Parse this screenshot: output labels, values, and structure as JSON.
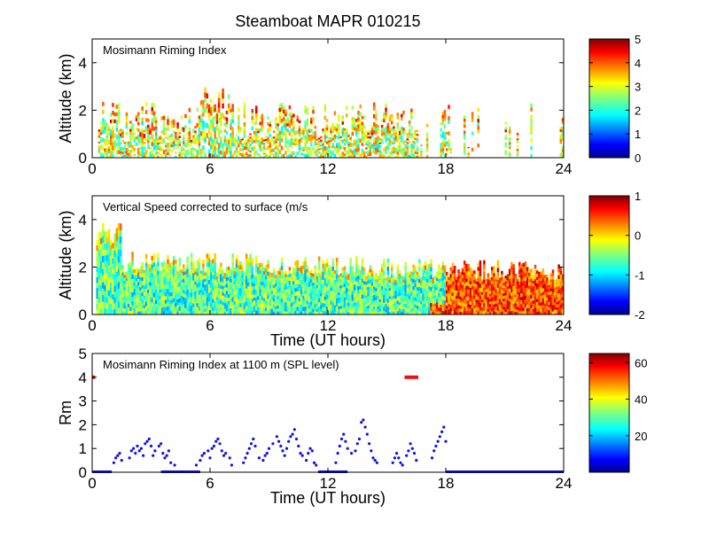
{
  "title": "Steamboat MAPR 010215",
  "colors": {
    "frame": "#000000",
    "points": "#1010ee",
    "baseline": "#1a1acc",
    "marker": "#ee1111",
    "background": "#ffffff"
  },
  "chart_data": [
    {
      "type": "heatmap",
      "panel_label": "Mosimann Riming Index",
      "ylabel": "Altitude (km)",
      "xlabel": "",
      "xlim": [
        0,
        24
      ],
      "ylim": [
        0,
        5
      ],
      "x_ticks": [
        "0",
        "6",
        "12",
        "18",
        "24"
      ],
      "y_ticks": [
        "0",
        "2",
        "4"
      ],
      "colorbar": {
        "min": 0,
        "max": 5,
        "ticks": [
          "0",
          "1",
          "2",
          "3",
          "4",
          "5"
        ]
      },
      "data_extent": {
        "x": [
          0.3,
          24
        ],
        "y": [
          0,
          3.5
        ],
        "dominant_range": [
          0.5,
          2.5
        ]
      }
    },
    {
      "type": "heatmap",
      "panel_label": "Vertical Speed corrected to surface (m/s",
      "ylabel": "Altitude (km)",
      "xlabel": "Time (UT hours)",
      "xlim": [
        0,
        24
      ],
      "ylim": [
        0,
        5
      ],
      "x_ticks": [
        "0",
        "6",
        "12",
        "18",
        "24"
      ],
      "y_ticks": [
        "0",
        "2",
        "4"
      ],
      "colorbar": {
        "min": -2,
        "max": 1,
        "ticks": [
          "-2",
          "-1",
          "0",
          "1"
        ]
      },
      "data_extent": {
        "x": [
          0.2,
          24
        ],
        "y": [
          0,
          3.6
        ],
        "dominant_range": [
          -1.0,
          0.0
        ]
      }
    },
    {
      "type": "scatter",
      "panel_label": "Mosimann Riming Index at 1100 m (SPL level)",
      "ylabel": "Rm",
      "xlabel": "Time (UT hours)",
      "xlim": [
        0,
        24
      ],
      "ylim": [
        0,
        5
      ],
      "x_ticks": [
        "0",
        "6",
        "12",
        "18",
        "24"
      ],
      "y_ticks": [
        "0",
        "1",
        "2",
        "3",
        "4",
        "5"
      ],
      "colorbar": {
        "min": 0,
        "max": 65,
        "ticks": [
          "20",
          "40",
          "60"
        ]
      },
      "marker_segments": [
        {
          "x": [
            0.0,
            0.15
          ],
          "y": 4.0
        },
        {
          "x": [
            15.9,
            16.6
          ],
          "y": 4.0
        }
      ],
      "baseline_segments": [
        {
          "x": [
            0,
            1.0
          ],
          "y": 0.0
        },
        {
          "x": [
            3.5,
            5.5
          ],
          "y": 0.0
        },
        {
          "x": [
            11.5,
            13.0
          ],
          "y": 0.0
        },
        {
          "x": [
            18.0,
            24.0
          ],
          "y": 0.0
        }
      ],
      "series": [
        {
          "name": "Rm at 1100 m",
          "points": [
            [
              1.1,
              0.4
            ],
            [
              1.2,
              0.6
            ],
            [
              1.3,
              0.7
            ],
            [
              1.4,
              0.8
            ],
            [
              1.5,
              0.5
            ],
            [
              1.9,
              0.6
            ],
            [
              2.0,
              0.9
            ],
            [
              2.1,
              1.0
            ],
            [
              2.2,
              0.8
            ],
            [
              2.3,
              1.1
            ],
            [
              2.4,
              0.9
            ],
            [
              2.5,
              1.0
            ],
            [
              2.6,
              0.7
            ],
            [
              2.7,
              1.2
            ],
            [
              2.8,
              1.3
            ],
            [
              2.9,
              1.4
            ],
            [
              3.0,
              1.1
            ],
            [
              3.1,
              0.7
            ],
            [
              3.2,
              0.9
            ],
            [
              3.4,
              1.1
            ],
            [
              3.5,
              1.2
            ],
            [
              3.6,
              0.8
            ],
            [
              3.7,
              0.6
            ],
            [
              3.8,
              0.7
            ],
            [
              3.9,
              0.9
            ],
            [
              4.0,
              0.4
            ],
            [
              4.2,
              0.3
            ],
            [
              5.3,
              0.3
            ],
            [
              5.5,
              0.5
            ],
            [
              5.6,
              0.7
            ],
            [
              5.7,
              0.8
            ],
            [
              5.9,
              0.9
            ],
            [
              6.0,
              0.6
            ],
            [
              6.1,
              1.0
            ],
            [
              6.2,
              1.1
            ],
            [
              6.3,
              1.3
            ],
            [
              6.4,
              1.4
            ],
            [
              6.5,
              1.2
            ],
            [
              6.6,
              0.9
            ],
            [
              6.7,
              0.7
            ],
            [
              6.8,
              0.8
            ],
            [
              7.0,
              0.6
            ],
            [
              7.1,
              0.3
            ],
            [
              7.7,
              0.4
            ],
            [
              7.8,
              0.6
            ],
            [
              7.9,
              0.8
            ],
            [
              8.0,
              1.0
            ],
            [
              8.1,
              1.2
            ],
            [
              8.2,
              1.4
            ],
            [
              8.3,
              1.1
            ],
            [
              8.5,
              0.6
            ],
            [
              8.7,
              0.5
            ],
            [
              8.8,
              0.7
            ],
            [
              8.9,
              0.8
            ],
            [
              9.0,
              1.0
            ],
            [
              9.2,
              1.2
            ],
            [
              9.4,
              1.5
            ],
            [
              9.5,
              1.3
            ],
            [
              9.6,
              1.1
            ],
            [
              9.7,
              0.9
            ],
            [
              9.8,
              0.7
            ],
            [
              9.9,
              1.0
            ],
            [
              10.0,
              1.3
            ],
            [
              10.1,
              1.5
            ],
            [
              10.2,
              1.6
            ],
            [
              10.3,
              1.8
            ],
            [
              10.4,
              1.4
            ],
            [
              10.5,
              1.1
            ],
            [
              10.6,
              0.8
            ],
            [
              10.7,
              0.7
            ],
            [
              10.9,
              0.5
            ],
            [
              11.0,
              0.8
            ],
            [
              11.1,
              1.0
            ],
            [
              11.2,
              0.9
            ],
            [
              11.3,
              0.4
            ],
            [
              11.4,
              0.3
            ],
            [
              12.4,
              0.4
            ],
            [
              12.5,
              0.8
            ],
            [
              12.6,
              1.1
            ],
            [
              12.7,
              1.4
            ],
            [
              12.8,
              1.6
            ],
            [
              12.9,
              1.3
            ],
            [
              13.0,
              1.0
            ],
            [
              13.2,
              0.8
            ],
            [
              13.4,
              0.9
            ],
            [
              13.5,
              1.2
            ],
            [
              13.6,
              1.4
            ],
            [
              13.7,
              2.1
            ],
            [
              13.8,
              2.2
            ],
            [
              13.9,
              1.9
            ],
            [
              14.0,
              1.6
            ],
            [
              14.1,
              1.2
            ],
            [
              14.2,
              0.9
            ],
            [
              14.3,
              0.6
            ],
            [
              14.4,
              0.5
            ],
            [
              14.5,
              0.4
            ],
            [
              15.3,
              0.4
            ],
            [
              15.4,
              0.6
            ],
            [
              15.5,
              0.8
            ],
            [
              15.6,
              0.6
            ],
            [
              15.7,
              0.4
            ],
            [
              15.8,
              0.3
            ],
            [
              16.0,
              0.7
            ],
            [
              16.1,
              0.9
            ],
            [
              16.2,
              1.2
            ],
            [
              16.3,
              1.0
            ],
            [
              16.4,
              0.8
            ],
            [
              16.5,
              0.5
            ],
            [
              17.3,
              0.6
            ],
            [
              17.4,
              0.9
            ],
            [
              17.5,
              1.1
            ],
            [
              17.6,
              1.3
            ],
            [
              17.7,
              1.5
            ],
            [
              17.8,
              1.7
            ],
            [
              17.9,
              1.9
            ],
            [
              18.0,
              1.3
            ]
          ]
        }
      ]
    }
  ]
}
